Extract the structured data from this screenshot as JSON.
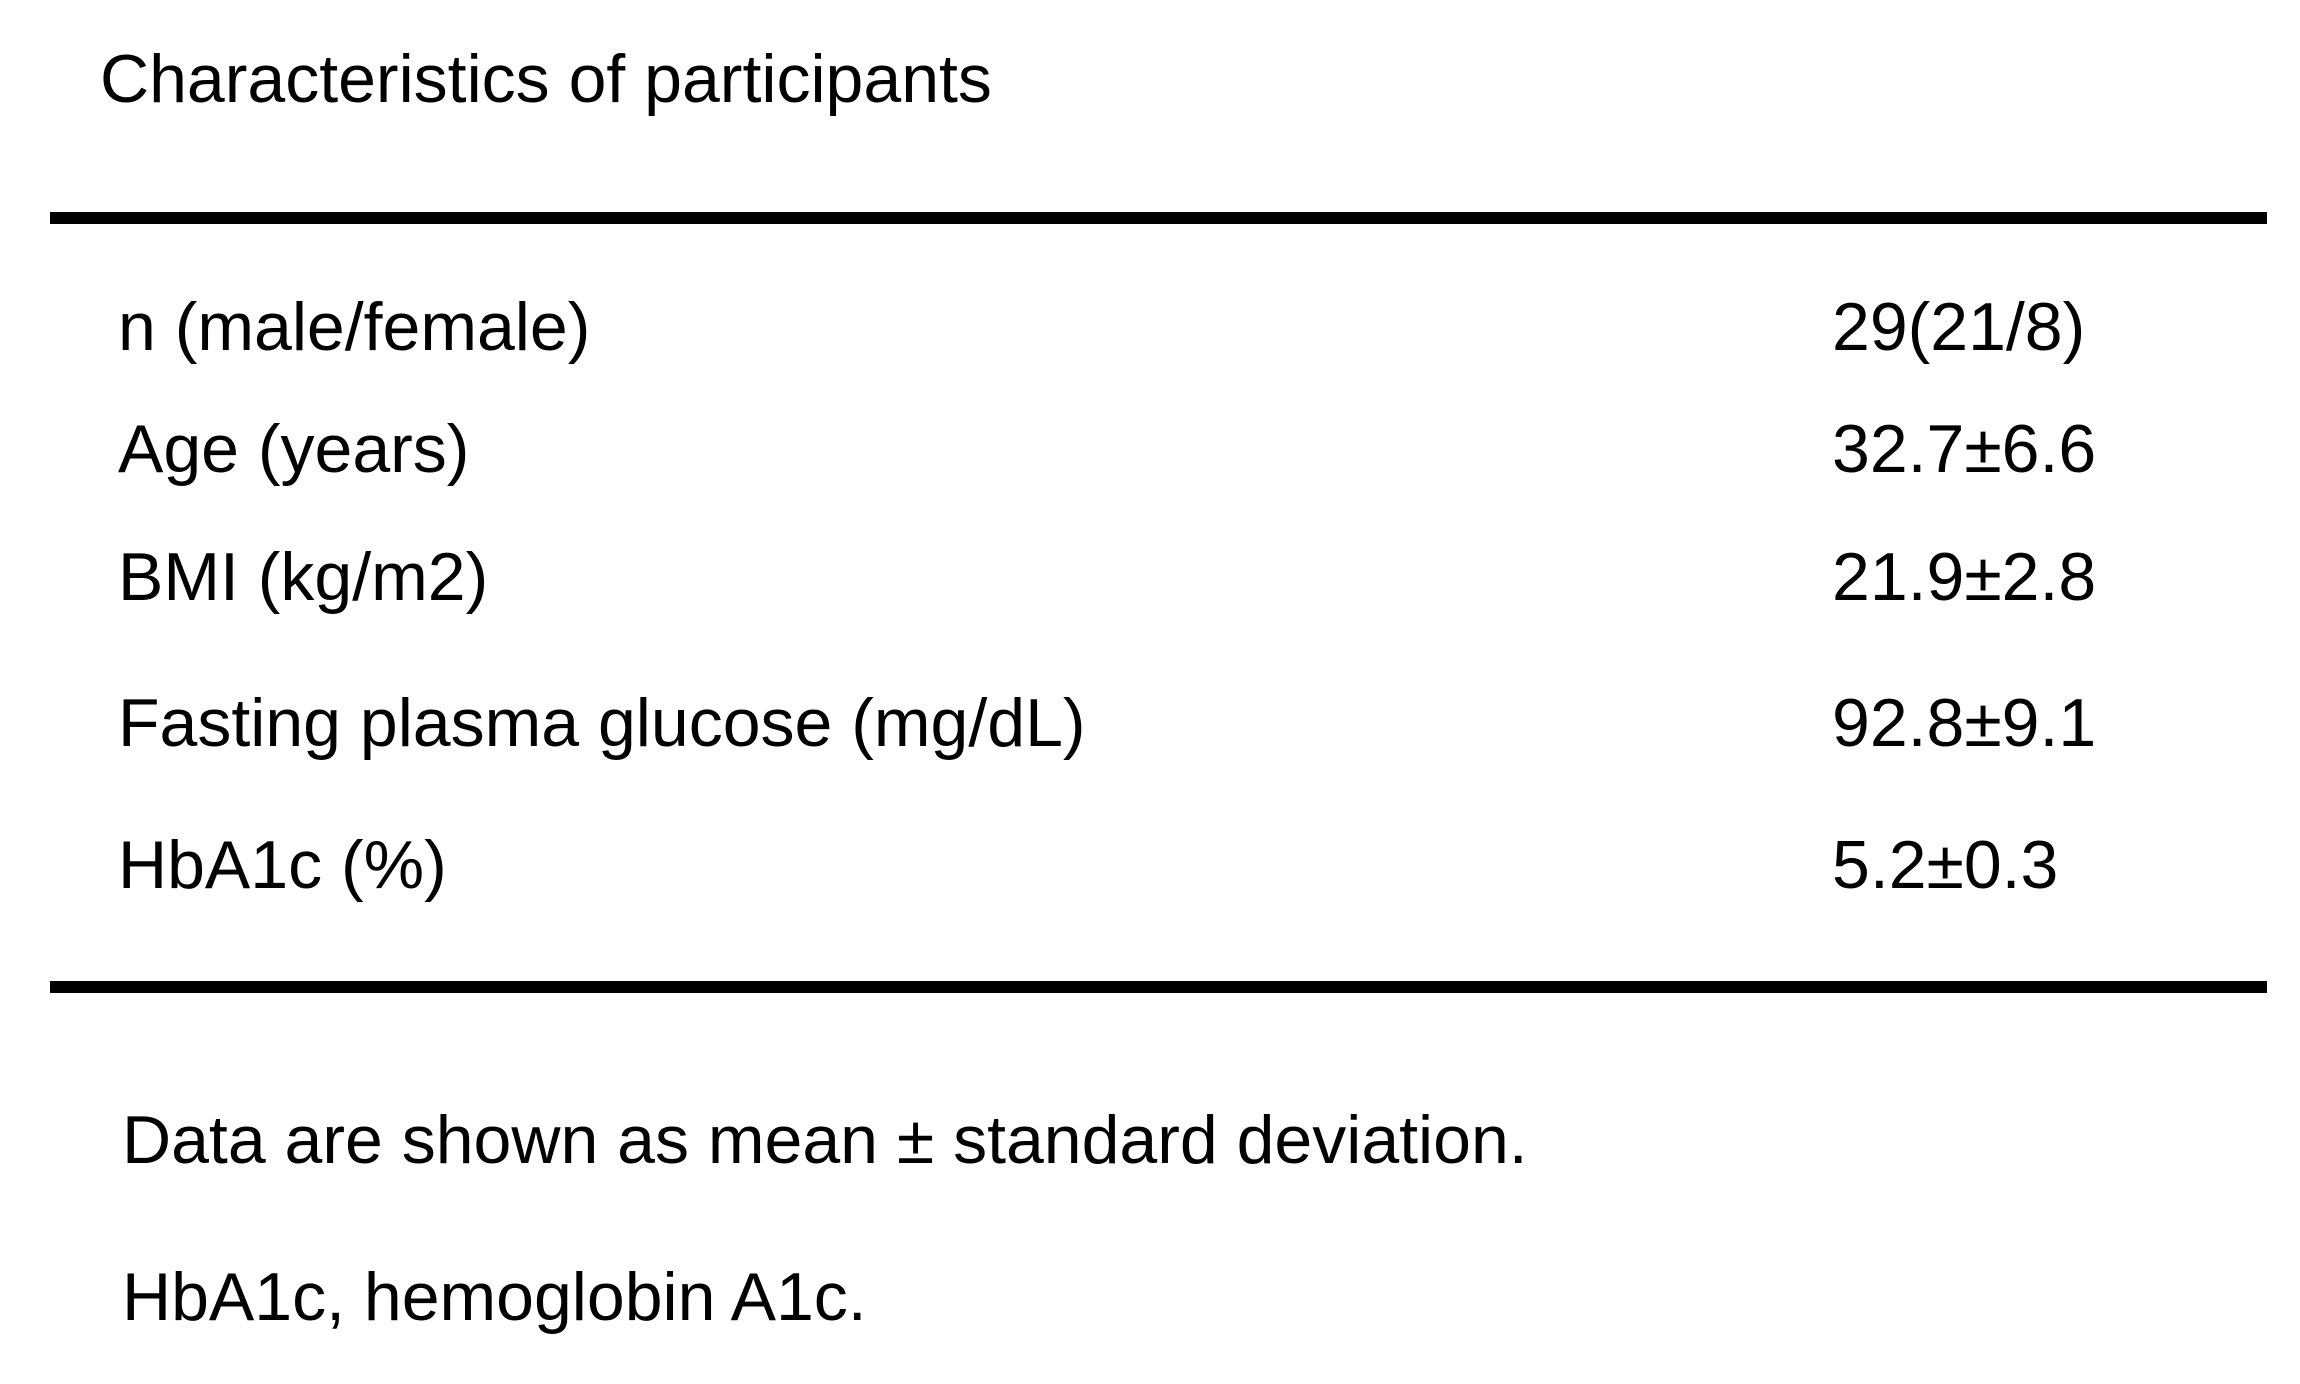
{
  "table": {
    "title": "Characteristics of participants",
    "rows": [
      {
        "label": "n (male/female)",
        "value": "29(21/8)"
      },
      {
        "label": "Age (years)",
        "value": "32.7±6.6"
      },
      {
        "label": "BMI (kg/m2)",
        "value": "21.9±2.8"
      },
      {
        "label": "Fasting plasma glucose (mg/dL)",
        "value": "92.8±9.1"
      },
      {
        "label": "HbA1c (%)",
        "value": "5.2±0.3"
      }
    ],
    "footnotes": [
      "Data are shown as mean ± standard deviation.",
      "HbA1c, hemoglobin A1c."
    ]
  },
  "colors": {
    "background": "#ffffff",
    "text": "#000000",
    "rule": "#000000"
  }
}
